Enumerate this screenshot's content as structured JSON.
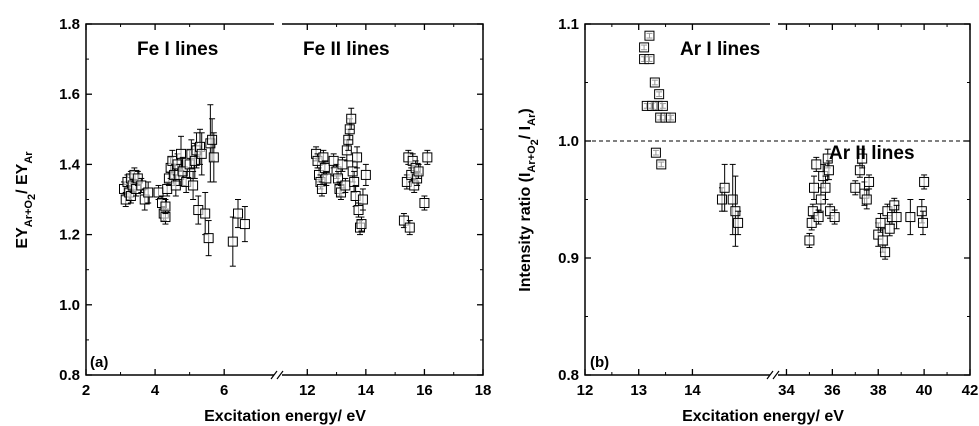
{
  "chart_data": [
    {
      "type": "scatter",
      "panel_label": "(a)",
      "xlabel": "Excitation energy/ eV",
      "ylabel": {
        "base": "EY",
        "num_sub": "Ar+O",
        "num_sub2": "2",
        "den": "/ EY",
        "den_sub": "Ar"
      },
      "ylim": [
        0.8,
        1.8
      ],
      "yticks": [
        "0.8",
        "1.0",
        "1.2",
        "1.4",
        "1.6",
        "1.8"
      ],
      "x_broken": true,
      "x_segments": [
        {
          "range": [
            2,
            7.5
          ],
          "ticks": [
            "2",
            "4",
            "6"
          ]
        },
        {
          "range": [
            11,
            18
          ],
          "ticks": [
            "12",
            "14",
            "16",
            "18"
          ]
        }
      ],
      "annotations": [
        "Fe I lines",
        "Fe II lines"
      ],
      "errorbars": true,
      "marker": "open-square",
      "points": [
        [
          3.1,
          1.33,
          0.02
        ],
        [
          3.15,
          1.3,
          0.02
        ],
        [
          3.2,
          1.35,
          0.02
        ],
        [
          3.25,
          1.32,
          0.02
        ],
        [
          3.3,
          1.36,
          0.02
        ],
        [
          3.3,
          1.31,
          0.02
        ],
        [
          3.35,
          1.34,
          0.02
        ],
        [
          3.4,
          1.37,
          0.02
        ],
        [
          3.45,
          1.33,
          0.02
        ],
        [
          3.5,
          1.36,
          0.02
        ],
        [
          3.6,
          1.34,
          0.02
        ],
        [
          3.7,
          1.3,
          0.03
        ],
        [
          3.8,
          1.32,
          0.03
        ],
        [
          4.1,
          1.32,
          0.02
        ],
        [
          4.2,
          1.29,
          0.02
        ],
        [
          4.25,
          1.26,
          0.02
        ],
        [
          4.3,
          1.25,
          0.02
        ],
        [
          4.3,
          1.28,
          0.02
        ],
        [
          4.35,
          1.33,
          0.02
        ],
        [
          4.4,
          1.36,
          0.02
        ],
        [
          4.45,
          1.39,
          0.03
        ],
        [
          4.5,
          1.41,
          0.03
        ],
        [
          4.55,
          1.37,
          0.03
        ],
        [
          4.6,
          1.34,
          0.03
        ],
        [
          4.65,
          1.4,
          0.03
        ],
        [
          4.7,
          1.37,
          0.03
        ],
        [
          4.75,
          1.43,
          0.05
        ],
        [
          4.8,
          1.38,
          0.04
        ],
        [
          4.9,
          1.35,
          0.03
        ],
        [
          5.0,
          1.4,
          0.04
        ],
        [
          5.05,
          1.43,
          0.04
        ],
        [
          5.1,
          1.34,
          0.04
        ],
        [
          5.15,
          1.41,
          0.05
        ],
        [
          5.2,
          1.44,
          0.05
        ],
        [
          5.25,
          1.27,
          0.04
        ],
        [
          5.3,
          1.45,
          0.05
        ],
        [
          5.35,
          1.43,
          0.06
        ],
        [
          5.45,
          1.26,
          0.06
        ],
        [
          5.55,
          1.19,
          0.05
        ],
        [
          5.6,
          1.46,
          0.11
        ],
        [
          5.65,
          1.47,
          0.06
        ],
        [
          5.7,
          1.42,
          0.07
        ],
        [
          6.25,
          1.18,
          0.07
        ],
        [
          6.4,
          1.26,
          0.04
        ],
        [
          6.6,
          1.23,
          0.05
        ],
        [
          12.3,
          1.43,
          0.02
        ],
        [
          12.35,
          1.41,
          0.02
        ],
        [
          12.4,
          1.37,
          0.02
        ],
        [
          12.45,
          1.35,
          0.02
        ],
        [
          12.5,
          1.33,
          0.02
        ],
        [
          12.55,
          1.42,
          0.02
        ],
        [
          12.6,
          1.39,
          0.02
        ],
        [
          12.65,
          1.36,
          0.02
        ],
        [
          12.9,
          1.41,
          0.02
        ],
        [
          13.0,
          1.38,
          0.02
        ],
        [
          13.05,
          1.36,
          0.02
        ],
        [
          13.1,
          1.33,
          0.02
        ],
        [
          13.15,
          1.32,
          0.02
        ],
        [
          13.2,
          1.4,
          0.02
        ],
        [
          13.3,
          1.34,
          0.02
        ],
        [
          13.35,
          1.44,
          0.03
        ],
        [
          13.4,
          1.47,
          0.03
        ],
        [
          13.45,
          1.5,
          0.03
        ],
        [
          13.5,
          1.53,
          0.03
        ],
        [
          13.55,
          1.38,
          0.03
        ],
        [
          13.6,
          1.35,
          0.03
        ],
        [
          13.65,
          1.31,
          0.03
        ],
        [
          13.7,
          1.42,
          0.03
        ],
        [
          13.75,
          1.27,
          0.02
        ],
        [
          13.8,
          1.22,
          0.02
        ],
        [
          13.85,
          1.23,
          0.02
        ],
        [
          13.9,
          1.3,
          0.03
        ],
        [
          14.0,
          1.37,
          0.03
        ],
        [
          15.3,
          1.24,
          0.02
        ],
        [
          15.4,
          1.35,
          0.02
        ],
        [
          15.45,
          1.42,
          0.02
        ],
        [
          15.5,
          1.22,
          0.02
        ],
        [
          15.55,
          1.37,
          0.02
        ],
        [
          15.6,
          1.41,
          0.02
        ],
        [
          15.65,
          1.34,
          0.02
        ],
        [
          15.7,
          1.39,
          0.02
        ],
        [
          15.75,
          1.36,
          0.02
        ],
        [
          15.8,
          1.38,
          0.02
        ],
        [
          16.0,
          1.29,
          0.02
        ],
        [
          16.1,
          1.42,
          0.02
        ]
      ]
    },
    {
      "type": "scatter",
      "panel_label": "(b)",
      "xlabel": "Excitation energy/ eV",
      "ylabel": {
        "base": "Intensity ratio (I",
        "num_sub": "Ar+O",
        "num_sub2": "2",
        "den": "/ I",
        "den_sub": "Ar",
        "close": ")"
      },
      "ylim": [
        0.8,
        1.1
      ],
      "yticks": [
        "0.8",
        "0.9",
        "1.0",
        "1.1"
      ],
      "x_broken": true,
      "x_segments": [
        {
          "range": [
            12,
            15.5
          ],
          "ticks": [
            "12",
            "13",
            "14"
          ]
        },
        {
          "range": [
            33.5,
            42
          ],
          "ticks": [
            "34",
            "36",
            "38",
            "40",
            "42"
          ]
        }
      ],
      "reference_line": {
        "y": 1.0,
        "style": "dashed"
      },
      "annotations": [
        "Ar I lines",
        "Ar II lines"
      ],
      "errorbars": true,
      "marker": "open-square",
      "points": [
        [
          13.1,
          1.08,
          0.002
        ],
        [
          13.1,
          1.07,
          0.002
        ],
        [
          13.15,
          1.03,
          0.002
        ],
        [
          13.2,
          1.07,
          0.002
        ],
        [
          13.2,
          1.09,
          0.002
        ],
        [
          13.25,
          1.03,
          0.002
        ],
        [
          13.3,
          1.05,
          0.002
        ],
        [
          13.32,
          0.99,
          0.002
        ],
        [
          13.35,
          1.03,
          0.003
        ],
        [
          13.38,
          1.04,
          0.002
        ],
        [
          13.4,
          1.02,
          0.002
        ],
        [
          13.42,
          0.98,
          0.002
        ],
        [
          13.45,
          1.03,
          0.002
        ],
        [
          13.5,
          1.02,
          0.002
        ],
        [
          13.6,
          1.02,
          0.002
        ],
        [
          14.55,
          0.95,
          0.01
        ],
        [
          14.6,
          0.96,
          0.02
        ],
        [
          14.75,
          0.95,
          0.03
        ],
        [
          14.8,
          0.94,
          0.03
        ],
        [
          14.85,
          0.93,
          0.01
        ],
        [
          35.0,
          0.915,
          0.006
        ],
        [
          35.1,
          0.93,
          0.006
        ],
        [
          35.15,
          0.94,
          0.006
        ],
        [
          35.2,
          0.96,
          0.01
        ],
        [
          35.3,
          0.98,
          0.006
        ],
        [
          35.4,
          0.935,
          0.006
        ],
        [
          35.5,
          0.95,
          0.01
        ],
        [
          35.6,
          0.97,
          0.01
        ],
        [
          35.7,
          0.96,
          0.01
        ],
        [
          35.8,
          0.985,
          0.008
        ],
        [
          35.85,
          0.975,
          0.008
        ],
        [
          35.9,
          0.94,
          0.006
        ],
        [
          36.1,
          0.935,
          0.006
        ],
        [
          37.0,
          0.96,
          0.006
        ],
        [
          37.2,
          0.975,
          0.006
        ],
        [
          37.3,
          0.985,
          0.008
        ],
        [
          37.4,
          0.955,
          0.01
        ],
        [
          37.5,
          0.95,
          0.008
        ],
        [
          37.6,
          0.965,
          0.006
        ],
        [
          38.0,
          0.92,
          0.01
        ],
        [
          38.1,
          0.93,
          0.008
        ],
        [
          38.2,
          0.915,
          0.01
        ],
        [
          38.3,
          0.905,
          0.006
        ],
        [
          38.4,
          0.94,
          0.006
        ],
        [
          38.5,
          0.925,
          0.006
        ],
        [
          38.6,
          0.935,
          0.006
        ],
        [
          38.7,
          0.945,
          0.006
        ],
        [
          38.8,
          0.935,
          0.01
        ],
        [
          39.4,
          0.935,
          0.015
        ],
        [
          39.9,
          0.94,
          0.01
        ],
        [
          39.95,
          0.93,
          0.01
        ],
        [
          40.0,
          0.965,
          0.006
        ]
      ]
    }
  ]
}
